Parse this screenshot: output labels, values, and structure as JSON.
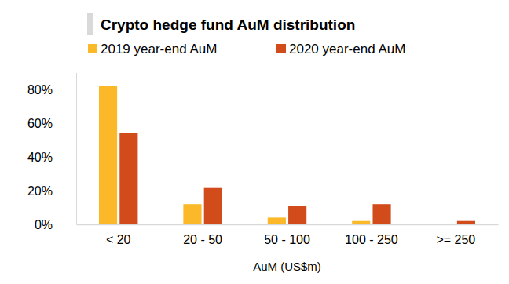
{
  "chart_data": {
    "type": "bar",
    "title": "Crypto hedge fund AuM distribution",
    "x_label": "AuM (US$m)",
    "categories": [
      "< 20",
      "20 - 50",
      "50 - 100",
      "100 - 250",
      ">= 250"
    ],
    "series": [
      {
        "name": "2019 year-end AuM",
        "color": "#fbb829",
        "values": [
          82,
          12,
          4,
          2,
          0
        ]
      },
      {
        "name": "2020 year-end AuM",
        "color": "#d24b1b",
        "values": [
          54,
          22,
          11,
          12,
          2
        ]
      }
    ],
    "ylim": [
      0,
      90
    ],
    "yticks": [
      {
        "value": 0,
        "label": "0%"
      },
      {
        "value": 20,
        "label": "20%"
      },
      {
        "value": 40,
        "label": "40%"
      },
      {
        "value": 60,
        "label": "60%"
      },
      {
        "value": 80,
        "label": "80%"
      }
    ],
    "grid": false,
    "legend": "top"
  }
}
